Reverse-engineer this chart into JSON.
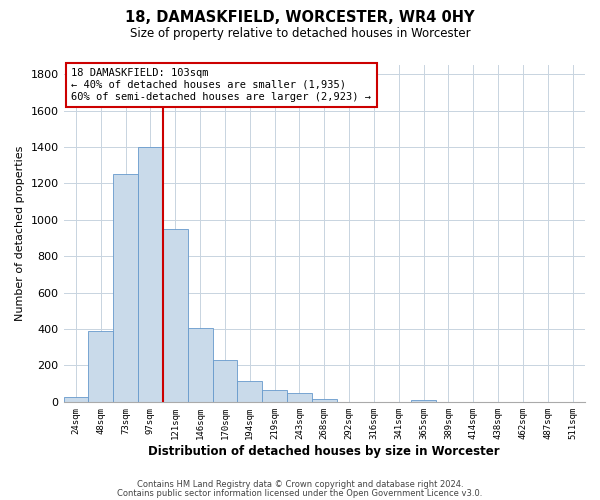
{
  "title": "18, DAMASKFIELD, WORCESTER, WR4 0HY",
  "subtitle": "Size of property relative to detached houses in Worcester",
  "xlabel": "Distribution of detached houses by size in Worcester",
  "ylabel": "Number of detached properties",
  "bar_color": "#c9daea",
  "bar_edge_color": "#6699cc",
  "categories": [
    "24sqm",
    "48sqm",
    "73sqm",
    "97sqm",
    "121sqm",
    "146sqm",
    "170sqm",
    "194sqm",
    "219sqm",
    "243sqm",
    "268sqm",
    "292sqm",
    "316sqm",
    "341sqm",
    "365sqm",
    "389sqm",
    "414sqm",
    "438sqm",
    "462sqm",
    "487sqm",
    "511sqm"
  ],
  "values": [
    25,
    390,
    1250,
    1400,
    950,
    405,
    230,
    115,
    65,
    47,
    15,
    0,
    0,
    0,
    12,
    0,
    0,
    0,
    0,
    0,
    0
  ],
  "ylim": [
    0,
    1850
  ],
  "yticks": [
    0,
    200,
    400,
    600,
    800,
    1000,
    1200,
    1400,
    1600,
    1800
  ],
  "vline_idx": 3,
  "vline_color": "#cc0000",
  "annotation_title": "18 DAMASKFIELD: 103sqm",
  "annotation_line1": "← 40% of detached houses are smaller (1,935)",
  "annotation_line2": "60% of semi-detached houses are larger (2,923) →",
  "annotation_box_color": "#cc0000",
  "footer1": "Contains HM Land Registry data © Crown copyright and database right 2024.",
  "footer2": "Contains public sector information licensed under the Open Government Licence v3.0.",
  "background_color": "#ffffff",
  "grid_color": "#c8d4e0"
}
